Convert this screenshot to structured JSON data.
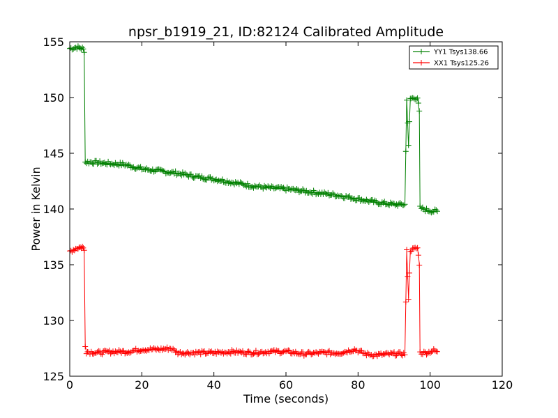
{
  "chart_data": {
    "type": "line",
    "title": "npsr_b1919_21, ID:82124 Calibrated Amplitude",
    "xlabel": "Time (seconds)",
    "ylabel": "Power in Kelvin",
    "xlim": [
      0,
      120
    ],
    "ylim": [
      125,
      155
    ],
    "xticks": [
      0,
      20,
      40,
      60,
      80,
      100,
      120
    ],
    "yticks": [
      125,
      130,
      135,
      140,
      145,
      150,
      155
    ],
    "grid": false,
    "legend_position": "top-right",
    "series": [
      {
        "name": "YY1 Tsys138.66",
        "color": "#008000",
        "points": [
          [
            0,
            154.4
          ],
          [
            2,
            154.5
          ],
          [
            3.5,
            154.4
          ],
          [
            4.0,
            154.2
          ],
          [
            4.3,
            144.2
          ],
          [
            6,
            144.2
          ],
          [
            10,
            144.1
          ],
          [
            15,
            144.0
          ],
          [
            20,
            143.6
          ],
          [
            25,
            143.4
          ],
          [
            30,
            143.2
          ],
          [
            35,
            142.9
          ],
          [
            40,
            142.7
          ],
          [
            45,
            142.4
          ],
          [
            50,
            142.1
          ],
          [
            55,
            141.9
          ],
          [
            60,
            141.8
          ],
          [
            65,
            141.6
          ],
          [
            70,
            141.4
          ],
          [
            75,
            141.2
          ],
          [
            80,
            140.9
          ],
          [
            85,
            140.6
          ],
          [
            90,
            140.4
          ],
          [
            93.0,
            140.4
          ],
          [
            93.5,
            149.9
          ],
          [
            94.0,
            145.6
          ],
          [
            94.5,
            149.9
          ],
          [
            96.5,
            150.0
          ],
          [
            97.0,
            148.7
          ],
          [
            97.2,
            140.1
          ],
          [
            99,
            139.9
          ],
          [
            101,
            139.8
          ],
          [
            102,
            139.8
          ]
        ]
      },
      {
        "name": "XX1 Tsys125.26",
        "color": "#ff0000",
        "points": [
          [
            0,
            136.2
          ],
          [
            2,
            136.5
          ],
          [
            3.5,
            136.6
          ],
          [
            4.0,
            136.3
          ],
          [
            4.3,
            127.8
          ],
          [
            4.6,
            127.2
          ],
          [
            8,
            127.1
          ],
          [
            12,
            127.2
          ],
          [
            16,
            127.2
          ],
          [
            20,
            127.4
          ],
          [
            25,
            127.4
          ],
          [
            28,
            127.5
          ],
          [
            30,
            127.1
          ],
          [
            35,
            127.1
          ],
          [
            40,
            127.1
          ],
          [
            45,
            127.2
          ],
          [
            50,
            127.1
          ],
          [
            55,
            127.2
          ],
          [
            60,
            127.2
          ],
          [
            65,
            127.0
          ],
          [
            70,
            127.1
          ],
          [
            75,
            127.1
          ],
          [
            79,
            127.4
          ],
          [
            82,
            127.0
          ],
          [
            85,
            126.9
          ],
          [
            90,
            127.0
          ],
          [
            93.0,
            127.0
          ],
          [
            93.5,
            136.2
          ],
          [
            94.0,
            132.0
          ],
          [
            94.5,
            136.3
          ],
          [
            96.5,
            136.5
          ],
          [
            97.0,
            135.1
          ],
          [
            97.2,
            127.1
          ],
          [
            99,
            127.1
          ],
          [
            101,
            127.3
          ],
          [
            102,
            127.2
          ]
        ]
      }
    ]
  }
}
